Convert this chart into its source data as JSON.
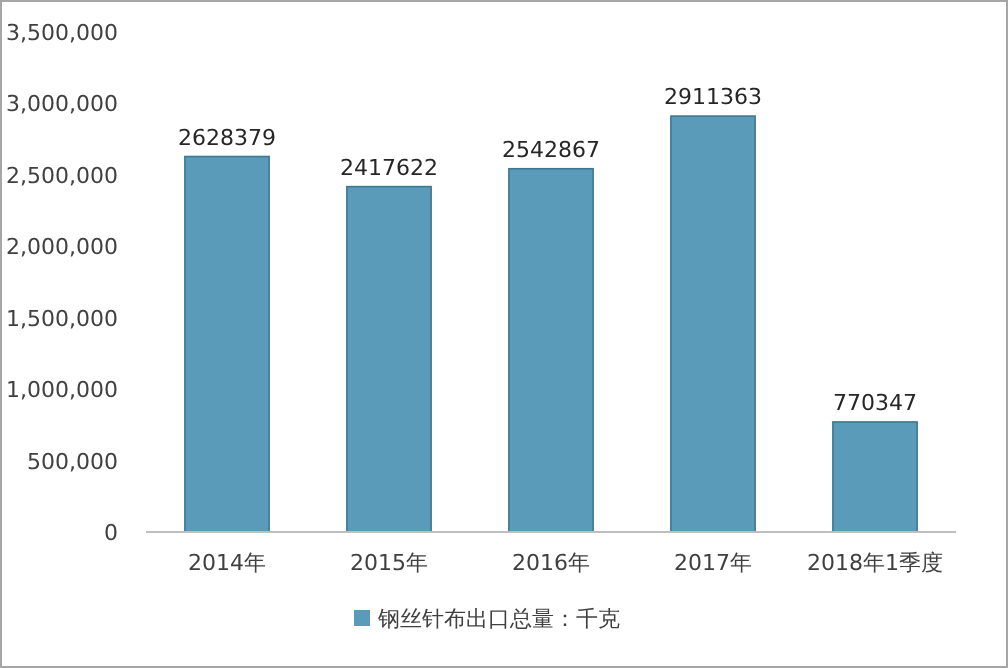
{
  "chart_data": {
    "type": "bar",
    "categories": [
      "2014年",
      "2015年",
      "2016年",
      "2017年",
      "2018年1季度"
    ],
    "series": [
      {
        "name": "钢丝针布出口总量：千克",
        "color": "#5b9bba",
        "values": [
          2628379,
          2417622,
          2542867,
          2911363,
          770347
        ]
      }
    ],
    "ylim": [
      0,
      3500000
    ],
    "yticks": [
      0,
      {
        "value": 500000,
        "label": "500,000"
      },
      {
        "value": 1000000,
        "label": "1,000,000"
      },
      {
        "value": 1500000,
        "label": "1,500,000"
      },
      {
        "value": 2000000,
        "label": "2,000,000"
      },
      {
        "value": 2500000,
        "label": "2,500,000"
      },
      {
        "value": 3000000,
        "label": "3,000,000"
      },
      {
        "value": 3500000,
        "label": "3,500,000"
      }
    ],
    "grid": false,
    "data_labels": true,
    "legend": "bottom"
  }
}
